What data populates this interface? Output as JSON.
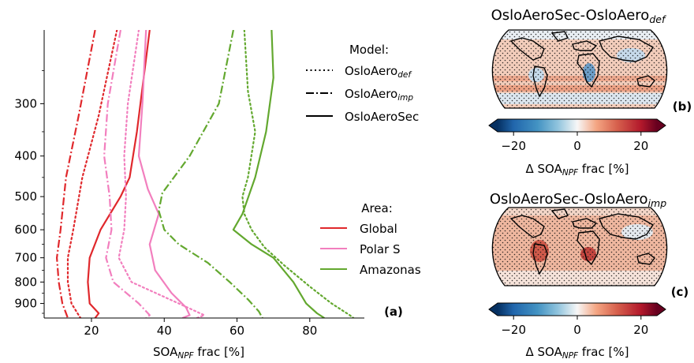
{
  "chart_data": [
    {
      "type": "line",
      "panel_label": "(a)",
      "xlabel_main": "SOA",
      "xlabel_sub": "NPF",
      "xlabel_rest": " frac [%]",
      "xlim": [
        7,
        95
      ],
      "ylim": [
        200,
        975
      ],
      "y_scale": "log",
      "y_inverted": true,
      "xticks": [
        20,
        40,
        60,
        80
      ],
      "yticks": [
        300,
        400,
        500,
        600,
        700,
        800,
        900
      ],
      "legend_model": {
        "title": "Model:",
        "entries": [
          {
            "main": "OsloAero",
            "sub": "def",
            "style": "dotted"
          },
          {
            "main": "OsloAero",
            "sub": "imp",
            "style": "dashdot"
          },
          {
            "main": "OsloAeroSec",
            "sub": "",
            "style": "solid"
          }
        ]
      },
      "legend_area": {
        "title": "Area:",
        "entries": [
          {
            "name": "Global",
            "color": "#e0282c"
          },
          {
            "name": "Polar S",
            "color": "#f27fbe"
          },
          {
            "name": "Amazonas",
            "color": "#63a82f"
          }
        ]
      },
      "series": [
        {
          "area": "Global",
          "model": "OsloAeroSec",
          "color": "#e0282c",
          "style": "solid",
          "points": [
            [
              36,
              200
            ],
            [
              32.5,
              350
            ],
            [
              30.5,
              450
            ],
            [
              28,
              500
            ],
            [
              22.5,
              600
            ],
            [
              19.5,
              700
            ],
            [
              19,
              800
            ],
            [
              19.5,
              900
            ],
            [
              22,
              950
            ],
            [
              21,
              975
            ]
          ]
        },
        {
          "area": "Global",
          "model": "OsloAero_def",
          "color": "#e0282c",
          "style": "dotted",
          "points": [
            [
              27,
              200
            ],
            [
              22,
              320
            ],
            [
              17.5,
              450
            ],
            [
              15,
              600
            ],
            [
              13.5,
              700
            ],
            [
              13.5,
              800
            ],
            [
              14.5,
              900
            ],
            [
              16.5,
              960
            ],
            [
              17,
              975
            ]
          ]
        },
        {
          "area": "Global",
          "model": "OsloAero_imp",
          "color": "#e0282c",
          "style": "dashdot",
          "points": [
            [
              21,
              200
            ],
            [
              16.5,
              320
            ],
            [
              13,
              450
            ],
            [
              11.5,
              600
            ],
            [
              10.5,
              700
            ],
            [
              11,
              800
            ],
            [
              12,
              900
            ],
            [
              13.5,
              975
            ]
          ]
        },
        {
          "area": "Polar S",
          "model": "OsloAeroSec",
          "color": "#f27fbe",
          "style": "solid",
          "points": [
            [
              35,
              200
            ],
            [
              34,
              300
            ],
            [
              33,
              400
            ],
            [
              35.5,
              480
            ],
            [
              38.5,
              550
            ],
            [
              36,
              650
            ],
            [
              37.5,
              750
            ],
            [
              42,
              850
            ],
            [
              46,
              920
            ],
            [
              47,
              960
            ],
            [
              45,
              975
            ]
          ]
        },
        {
          "area": "Polar S",
          "model": "OsloAero_def",
          "color": "#f27fbe",
          "style": "dotted",
          "points": [
            [
              33,
              200
            ],
            [
              30,
              300
            ],
            [
              29,
              400
            ],
            [
              29.5,
              500
            ],
            [
              29,
              600
            ],
            [
              27.5,
              700
            ],
            [
              31,
              800
            ],
            [
              44,
              900
            ],
            [
              51,
              960
            ],
            [
              49,
              975
            ]
          ]
        },
        {
          "area": "Polar S",
          "model": "OsloAero_imp",
          "color": "#f27fbe",
          "style": "dashdot",
          "points": [
            [
              28,
              200
            ],
            [
              24.5,
              300
            ],
            [
              23.5,
              400
            ],
            [
              25,
              500
            ],
            [
              25.5,
              600
            ],
            [
              24,
              700
            ],
            [
              26,
              800
            ],
            [
              33,
              900
            ],
            [
              36,
              960
            ],
            [
              35,
              975
            ]
          ]
        },
        {
          "area": "Amazonas",
          "model": "OsloAeroSec",
          "color": "#63a82f",
          "style": "solid",
          "points": [
            [
              69.5,
              200
            ],
            [
              70,
              260
            ],
            [
              68,
              350
            ],
            [
              65,
              450
            ],
            [
              61.5,
              550
            ],
            [
              59,
              600
            ],
            [
              64,
              650
            ],
            [
              70,
              700
            ],
            [
              75.5,
              800
            ],
            [
              79,
              900
            ],
            [
              82,
              950
            ],
            [
              84,
              975
            ]
          ]
        },
        {
          "area": "Amazonas",
          "model": "OsloAero_def",
          "color": "#63a82f",
          "style": "dotted",
          "points": [
            [
              62,
              200
            ],
            [
              63,
              280
            ],
            [
              65,
              350
            ],
            [
              63,
              450
            ],
            [
              61.5,
              500
            ],
            [
              62,
              550
            ],
            [
              64,
              600
            ],
            [
              67.5,
              660
            ],
            [
              73,
              730
            ],
            [
              80,
              820
            ],
            [
              86,
              900
            ],
            [
              91,
              960
            ],
            [
              92,
              975
            ]
          ]
        },
        {
          "area": "Amazonas",
          "model": "OsloAero_imp",
          "color": "#63a82f",
          "style": "dashdot",
          "points": [
            [
              59,
              200
            ],
            [
              55,
              300
            ],
            [
              47,
              400
            ],
            [
              39.5,
              490
            ],
            [
              38.5,
              540
            ],
            [
              40,
              600
            ],
            [
              44,
              650
            ],
            [
              52,
              720
            ],
            [
              58,
              800
            ],
            [
              63,
              880
            ],
            [
              66,
              940
            ],
            [
              67,
              975
            ]
          ]
        }
      ]
    },
    {
      "type": "heatmap",
      "projection": "robinson",
      "panel_label": "(b)",
      "title_main": "OsloAeroSec-OsloAero",
      "title_sub": "def",
      "colorbar": {
        "min": -25,
        "max": 25,
        "ticks": [
          -20,
          0,
          20
        ],
        "label_main": "Δ SOA",
        "label_sub": "NPF",
        "label_rest": " frac [%]",
        "extend": "both",
        "cmap": "RdBu_r"
      },
      "pattern": "mostly small positive differences over oceans (light red), bluish over parts of land and polar regions, stippling where significant"
    },
    {
      "type": "heatmap",
      "projection": "robinson",
      "panel_label": "(c)",
      "title_main": "OsloAeroSec-OsloAero",
      "title_sub": "imp",
      "colorbar": {
        "min": -25,
        "max": 25,
        "ticks": [
          -20,
          0,
          20
        ],
        "label_main": "Δ SOA",
        "label_sub": "NPF",
        "label_rest": " frac [%]",
        "extend": "both",
        "cmap": "RdBu_r"
      },
      "pattern": "positive differences almost everywhere, strongest over tropical South America and Africa, stippling where significant"
    }
  ]
}
